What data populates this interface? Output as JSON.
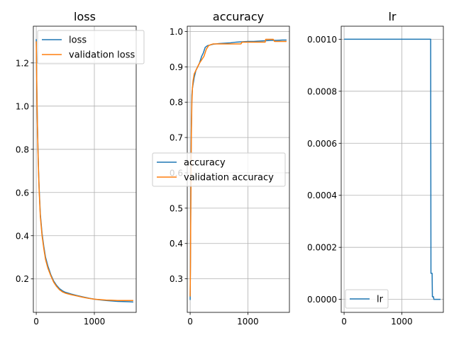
{
  "chart_data": [
    {
      "type": "line",
      "title": "loss",
      "xlim": [
        -50,
        1720
      ],
      "ylim": [
        0.045,
        1.37
      ],
      "xticks": [
        0,
        1000
      ],
      "yticks": [
        0.2,
        0.4,
        0.6,
        0.8,
        1.0,
        1.2
      ],
      "ytick_format": 1,
      "grid": true,
      "legend": "upper right",
      "series": [
        {
          "name": "loss",
          "color": "#1f77b4",
          "x": [
            0,
            5,
            10,
            20,
            30,
            40,
            50,
            70,
            100,
            130,
            160,
            200,
            250,
            300,
            350,
            400,
            450,
            500,
            600,
            700,
            800,
            900,
            1000,
            1100,
            1200,
            1300,
            1400,
            1500,
            1600,
            1670
          ],
          "y": [
            1.31,
            1.2,
            1.08,
            0.92,
            0.8,
            0.7,
            0.62,
            0.5,
            0.41,
            0.35,
            0.3,
            0.26,
            0.22,
            0.19,
            0.17,
            0.155,
            0.145,
            0.138,
            0.13,
            0.123,
            0.117,
            0.111,
            0.106,
            0.103,
            0.1,
            0.098,
            0.096,
            0.095,
            0.094,
            0.093
          ]
        },
        {
          "name": "validation loss",
          "color": "#ff7f0e",
          "x": [
            0,
            5,
            10,
            20,
            30,
            40,
            50,
            70,
            100,
            130,
            160,
            200,
            250,
            300,
            350,
            400,
            450,
            500,
            600,
            700,
            800,
            900,
            1000,
            1100,
            1200,
            1300,
            1400,
            1500,
            1600,
            1670
          ],
          "y": [
            1.3,
            1.19,
            1.07,
            0.91,
            0.79,
            0.69,
            0.61,
            0.49,
            0.4,
            0.34,
            0.29,
            0.25,
            0.215,
            0.185,
            0.165,
            0.15,
            0.14,
            0.134,
            0.127,
            0.121,
            0.115,
            0.11,
            0.106,
            0.104,
            0.102,
            0.101,
            0.1,
            0.1,
            0.1,
            0.1
          ]
        }
      ]
    },
    {
      "type": "line",
      "title": "accuracy",
      "xlim": [
        -50,
        1720
      ],
      "ylim": [
        0.205,
        1.015
      ],
      "xticks": [
        0,
        1000
      ],
      "yticks": [
        0.3,
        0.4,
        0.5,
        0.6,
        0.7,
        0.8,
        0.9,
        1.0
      ],
      "ytick_format": 1,
      "grid": true,
      "legend": "center",
      "series": [
        {
          "name": "accuracy",
          "color": "#1f77b4",
          "x": [
            0,
            5,
            10,
            20,
            30,
            40,
            50,
            70,
            100,
            130,
            160,
            200,
            230,
            260,
            300,
            350,
            400,
            500,
            600,
            700,
            800,
            900,
            1000,
            1100,
            1200,
            1300,
            1400,
            1500,
            1600,
            1670
          ],
          "y": [
            0.24,
            0.35,
            0.5,
            0.72,
            0.82,
            0.84,
            0.85,
            0.87,
            0.89,
            0.9,
            0.91,
            0.93,
            0.94,
            0.955,
            0.96,
            0.962,
            0.964,
            0.966,
            0.967,
            0.968,
            0.97,
            0.971,
            0.972,
            0.972,
            0.973,
            0.974,
            0.975,
            0.975,
            0.976,
            0.976
          ]
        },
        {
          "name": "validation accuracy",
          "color": "#ff7f0e",
          "x": [
            0,
            5,
            10,
            20,
            30,
            40,
            50,
            70,
            100,
            130,
            160,
            200,
            240,
            280,
            320,
            360,
            400,
            500,
            700,
            880,
            900,
            1000,
            1300,
            1310,
            1440,
            1460,
            1670
          ],
          "y": [
            0.25,
            0.33,
            0.48,
            0.7,
            0.8,
            0.84,
            0.86,
            0.88,
            0.89,
            0.9,
            0.91,
            0.92,
            0.93,
            0.95,
            0.96,
            0.963,
            0.965,
            0.965,
            0.965,
            0.965,
            0.97,
            0.97,
            0.97,
            0.978,
            0.978,
            0.972,
            0.972
          ]
        }
      ]
    },
    {
      "type": "line",
      "title": "lr",
      "xlim": [
        -50,
        1720
      ],
      "ylim": [
        -5e-05,
        0.00105
      ],
      "xticks": [
        0,
        1000
      ],
      "yticks": [
        0.0,
        0.0002,
        0.0004,
        0.0006,
        0.0008,
        0.001
      ],
      "ytick_format": 4,
      "grid": true,
      "legend": "lower left",
      "series": [
        {
          "name": "lr",
          "color": "#1f77b4",
          "x": [
            0,
            1500,
            1505,
            1525,
            1530,
            1550,
            1555,
            1670
          ],
          "y": [
            0.001,
            0.001,
            0.0001,
            0.0001,
            1e-05,
            1e-05,
            0.0,
            0.0
          ]
        }
      ]
    }
  ]
}
